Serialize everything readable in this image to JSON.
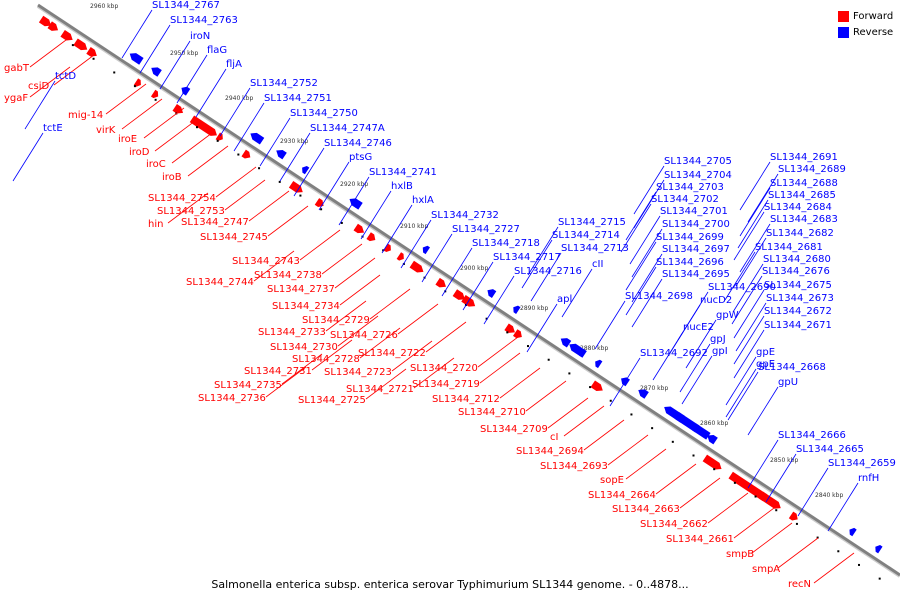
{
  "caption": "Salmonella enterica subsp. enterica serovar Typhimurium SL1344 genome. - 0..4878...",
  "legend": [
    {
      "label": "Forward",
      "color": "#ff0000"
    },
    {
      "label": "Reverse",
      "color": "#0000ff"
    }
  ],
  "colors": {
    "forward": "#ff0000",
    "reverse": "#0000ff",
    "backbone": "#808080"
  },
  "ticks": [
    "2960 kbp",
    "2950 kbp",
    "2940 kbp",
    "2930 kbp",
    "2920 kbp",
    "2910 kbp",
    "2900 kbp",
    "2890 kbp",
    "2880 kbp",
    "2870 kbp",
    "2860 kbp",
    "2850 kbp",
    "2840 kbp"
  ],
  "forward_labels": [
    "gabT",
    "csiD",
    "ygaF",
    "mig-14",
    "virK",
    "iroE",
    "iroD",
    "iroC",
    "iroB",
    "SL1344_2754",
    "SL1344_2753",
    "hin",
    "SL1344_2747",
    "SL1344_2745",
    "SL1344_2743",
    "SL1344_2744",
    "SL1344_2738",
    "SL1344_2737",
    "SL1344_2734",
    "SL1344_2729",
    "SL1344_2733",
    "SL1344_2726",
    "SL1344_2730",
    "SL1344_2722",
    "SL1344_2728",
    "SL1344_2723",
    "SL1344_2720",
    "SL1344_2731",
    "SL1344_2721",
    "SL1344_2719",
    "SL1344_2735",
    "SL1344_2736",
    "SL1344_2725",
    "SL1344_2712",
    "SL1344_2710",
    "SL1344_2709",
    "cI",
    "SL1344_2694",
    "SL1344_2693",
    "sopE",
    "SL1344_2664",
    "SL1344_2663",
    "SL1344_2662",
    "SL1344_2661",
    "smpB",
    "smpA",
    "recN"
  ],
  "reverse_labels": [
    "SL1344_2767",
    "SL1344_2763",
    "iroN",
    "flaG",
    "fljA",
    "tctD",
    "tctE",
    "SL1344_2752",
    "SL1344_2751",
    "SL1344_2750",
    "SL1344_2747A",
    "SL1344_2746",
    "ptsG",
    "SL1344_2741",
    "hxlB",
    "hxlA",
    "SL1344_2732",
    "SL1344_2727",
    "SL1344_2718",
    "SL1344_2717",
    "SL1344_2716",
    "SL1344_2715",
    "SL1344_2714",
    "SL1344_2713",
    "cII",
    "apl",
    "SL1344_2705",
    "SL1344_2704",
    "SL1344_2703",
    "SL1344_2702",
    "SL1344_2701",
    "SL1344_2700",
    "SL1344_2699",
    "SL1344_2697",
    "SL1344_2696",
    "SL1344_2695",
    "SL1344_2698",
    "SL1344_2692",
    "SL1344_2691",
    "SL1344_2689",
    "SL1344_2688",
    "SL1344_2685",
    "SL1344_2684",
    "SL1344_2683",
    "SL1344_2682",
    "SL1344_2681",
    "SL1344_2680",
    "SL1344_2676",
    "SL1344_2675",
    "SL1344_2673",
    "SL1344_2672",
    "SL1344_2671",
    "SL1344_2690",
    "nucD2",
    "gpW",
    "nucE2",
    "gpJ",
    "gpI",
    "gpE",
    "gpE",
    "SL1344_2668",
    "gpU",
    "SL1344_2666",
    "SL1344_2665",
    "SL1344_2659",
    "rnfH"
  ]
}
